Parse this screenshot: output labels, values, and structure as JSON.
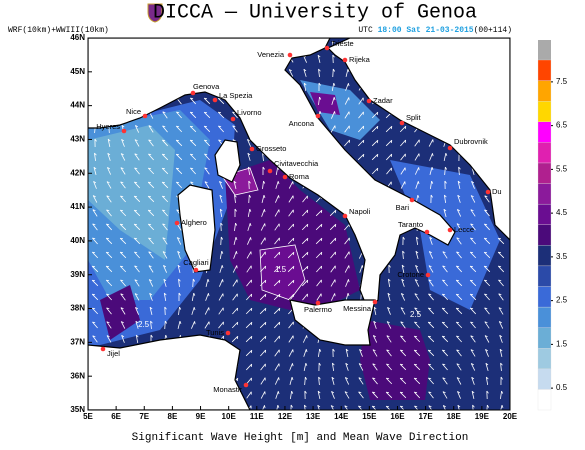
{
  "header": {
    "title": "DICCA — University of Genoa",
    "model": "WRF(10km)+WWIII(10km)",
    "utc": "UTC",
    "time": "18:00 Sat 21-03-2015",
    "lead": "(00+114)"
  },
  "axes": {
    "lat_labels": [
      "46N",
      "45N",
      "44N",
      "43N",
      "42N",
      "41N",
      "40N",
      "39N",
      "38N",
      "37N",
      "36N",
      "35N"
    ],
    "lon_labels": [
      "5E",
      "6E",
      "7E",
      "8E",
      "9E",
      "10E",
      "11E",
      "12E",
      "13E",
      "14E",
      "15E",
      "16E",
      "17E",
      "18E",
      "19E",
      "20E"
    ]
  },
  "cities": [
    "Venezia",
    "Trieste",
    "Rijeka",
    "Genova",
    "La Spezia",
    "Nice",
    "Livorno",
    "Zadar",
    "Ancona",
    "Split",
    "Hyeres",
    "Grosseto",
    "Dubrovnik",
    "Civitavecchia",
    "Roma",
    "Du",
    "Bari",
    "Napoli",
    "Alghero",
    "Taranto",
    "Lecce",
    "Cagliari",
    "Crotone",
    "Palermo",
    "Messina",
    "Tunis",
    "Jijel",
    "Monastir"
  ],
  "contour_labels": [
    "2.5",
    "1.5",
    "2.5"
  ],
  "colorbar": {
    "range": [
      0,
      8
    ],
    "ticks": [
      0.5,
      1.5,
      2.5,
      3.5,
      4.5,
      5.5,
      6.5,
      7.5
    ],
    "colors": [
      "#ffffff",
      "#c6dbef",
      "#9ecae1",
      "#6baed6",
      "#4a90d9",
      "#3a6ad8",
      "#2b4aa8",
      "#1c2f78",
      "#4b0a7a",
      "#6a0d91",
      "#8b1a9b",
      "#b0208f",
      "#e020b0",
      "#ff00ff",
      "#ffd700",
      "#ffa500",
      "#ff4500"
    ]
  },
  "caption": "Significant Wave Height [m] and Mean Wave Direction"
}
